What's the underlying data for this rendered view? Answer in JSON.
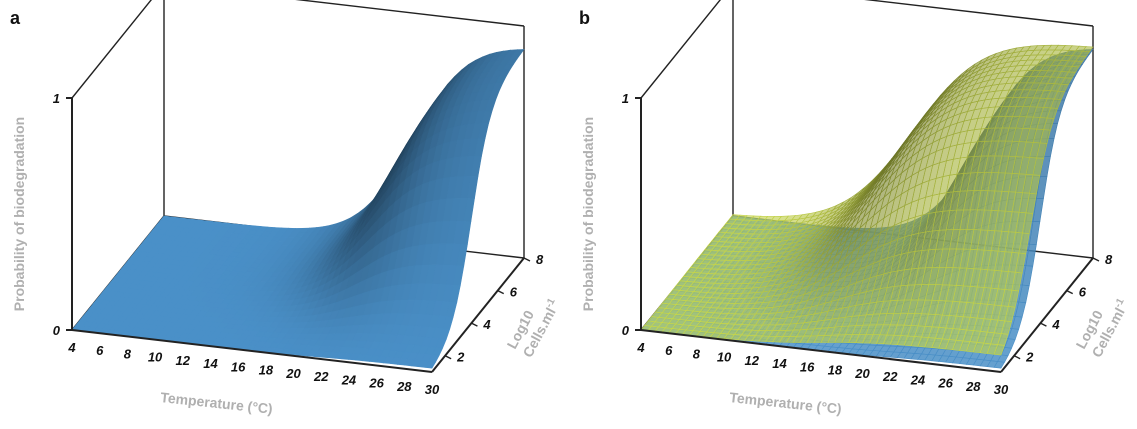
{
  "chart_data": [
    {
      "type": "surface",
      "panel_label": "a",
      "xlabel": "Temperature (°C)",
      "ylabel": "Log10 Cells.ml-1",
      "ylabel_line1": "Log10",
      "ylabel_line2": "Cells.ml",
      "ylabel_sup": "-1",
      "zlabel": "Probability of biodegradation",
      "x_ticks": [
        "4",
        "6",
        "8",
        "10",
        "12",
        "14",
        "16",
        "18",
        "20",
        "22",
        "24",
        "26",
        "28",
        "30"
      ],
      "y_ticks": [
        "2",
        "4",
        "6",
        "8"
      ],
      "z_ticks": [
        "0",
        "1"
      ],
      "xlim": [
        4,
        30
      ],
      "ylim": [
        1,
        8
      ],
      "zlim": [
        0,
        1
      ],
      "series": [
        {
          "color": "#4a90c8",
          "model": "logistic",
          "temp_midpoint": 22,
          "temp_scale": 2.0,
          "cell_midpoint": 4,
          "cell_scale": 0.75,
          "z_max": 0.92
        }
      ]
    },
    {
      "type": "surface",
      "panel_label": "b",
      "xlabel": "Temperature (°C)",
      "ylabel": "Log10 Cells.ml-1",
      "ylabel_line1": "Log10",
      "ylabel_line2": "Cells.ml",
      "ylabel_sup": "-1",
      "zlabel": "Probability of biodegradation",
      "x_ticks": [
        "4",
        "6",
        "8",
        "10",
        "12",
        "14",
        "16",
        "18",
        "20",
        "22",
        "24",
        "26",
        "28",
        "30"
      ],
      "y_ticks": [
        "2",
        "4",
        "6",
        "8"
      ],
      "z_ticks": [
        "0",
        "1"
      ],
      "xlim": [
        4,
        30
      ],
      "ylim": [
        1,
        8
      ],
      "zlim": [
        0,
        1
      ],
      "series": [
        {
          "color": "#4a90c8",
          "model": "logistic",
          "temp_midpoint": 22,
          "temp_scale": 2.0,
          "cell_midpoint": 4,
          "cell_scale": 0.75,
          "z_max": 0.92
        },
        {
          "color": "#c8d84a",
          "model": "logistic",
          "temp_midpoint": 17,
          "temp_scale": 2.6,
          "cell_midpoint": 3.2,
          "cell_scale": 0.9,
          "z_max": 0.92
        }
      ]
    }
  ]
}
